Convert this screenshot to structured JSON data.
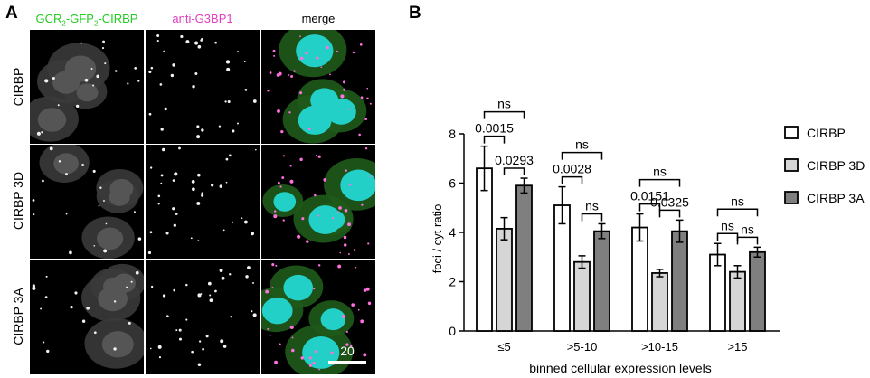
{
  "panel_a": {
    "label": "A",
    "col_green": "GCR",
    "col_sub1": "2",
    "col_mid": "-GFP",
    "col_sub2": "2",
    "col_end": "-CIRBP",
    "col_magenta": "anti-G3BP1",
    "col_merge": "merge",
    "rows": [
      "CIRBP",
      "CIRBP 3D",
      "CIRBP 3A"
    ],
    "scale_bar": "20"
  },
  "colors": {
    "green_label": "#22cc22",
    "magenta_label": "#e040c0",
    "nucleus": "#22d0c8",
    "cytoplasm": "#1f5a1a",
    "foci": "#ff70e0"
  },
  "chart_data": {
    "panel_label": "B",
    "type": "bar",
    "categories": [
      "≤5",
      ">5-10",
      ">10-15",
      ">15"
    ],
    "xlabel": "binned cellular expression levels",
    "ylabel": "foci / cyt ratio",
    "ylim": [
      0,
      8
    ],
    "yticks": [
      0,
      2,
      4,
      6,
      8
    ],
    "legend_position": "right",
    "series": [
      {
        "name": "CIRBP",
        "color": "#ffffff",
        "values": [
          6.6,
          5.1,
          4.2,
          3.1
        ],
        "errors": [
          0.9,
          0.75,
          0.55,
          0.45
        ]
      },
      {
        "name": "CIRBP 3D",
        "color": "#d6d6d6",
        "values": [
          4.15,
          2.8,
          2.35,
          2.4
        ],
        "errors": [
          0.45,
          0.25,
          0.15,
          0.25
        ]
      },
      {
        "name": "CIRBP 3A",
        "color": "#7f7f7f",
        "values": [
          5.9,
          4.05,
          4.05,
          3.2
        ],
        "errors": [
          0.3,
          0.3,
          0.45,
          0.2
        ]
      }
    ],
    "annotations": [
      {
        "group": 0,
        "from": 0,
        "to": 1,
        "text": "0.0015"
      },
      {
        "group": 0,
        "from": 1,
        "to": 2,
        "text": "0.0293"
      },
      {
        "group": 0,
        "from": 0,
        "to": 2,
        "text": "ns"
      },
      {
        "group": 1,
        "from": 0,
        "to": 1,
        "text": "0.0028"
      },
      {
        "group": 1,
        "from": 1,
        "to": 2,
        "text": "ns"
      },
      {
        "group": 1,
        "from": 0,
        "to": 2,
        "text": "ns"
      },
      {
        "group": 2,
        "from": 0,
        "to": 1,
        "text": "0.0151"
      },
      {
        "group": 2,
        "from": 1,
        "to": 2,
        "text": "0.0325"
      },
      {
        "group": 2,
        "from": 0,
        "to": 2,
        "text": "ns"
      },
      {
        "group": 3,
        "from": 0,
        "to": 1,
        "text": "ns"
      },
      {
        "group": 3,
        "from": 1,
        "to": 2,
        "text": "ns"
      },
      {
        "group": 3,
        "from": 0,
        "to": 2,
        "text": "ns"
      }
    ]
  }
}
